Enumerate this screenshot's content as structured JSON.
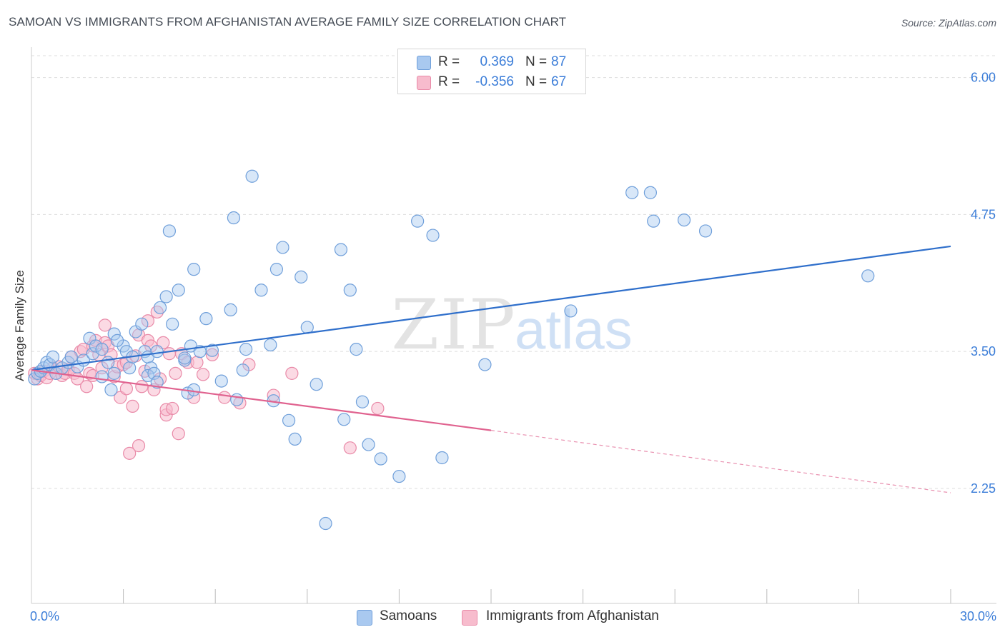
{
  "title": "SAMOAN VS IMMIGRANTS FROM AFGHANISTAN AVERAGE FAMILY SIZE CORRELATION CHART",
  "source": "Source: ZipAtlas.com",
  "watermark": {
    "zip": "ZIP",
    "atlas": "atlas"
  },
  "colors": {
    "blue_fill": "#a9c9f0",
    "blue_stroke": "#6f9fda",
    "blue_line": "#2f6fcb",
    "pink_fill": "#f7bccd",
    "pink_stroke": "#e98aa8",
    "pink_line": "#e0628f",
    "tick_label": "#3b7dd8",
    "grid": "#dddddd"
  },
  "stats_box": {
    "rows": [
      {
        "series": "samoans",
        "r_label": "R =",
        "r_value": "0.369",
        "n_label": "N =",
        "n_value": "87"
      },
      {
        "series": "afghanistan",
        "r_label": "R =",
        "r_value": "-0.356",
        "n_label": "N =",
        "n_value": "67"
      }
    ]
  },
  "chart_data": {
    "type": "scatter",
    "title": "SAMOAN VS IMMIGRANTS FROM AFGHANISTAN AVERAGE FAMILY SIZE CORRELATION CHART",
    "xlabel": "",
    "ylabel": "Average Family Size",
    "xlim": [
      0,
      30
    ],
    "ylim": [
      1.2,
      6.2
    ],
    "x_tick_labels": [
      "0.0%",
      "30.0%"
    ],
    "y_ticks": [
      2.25,
      3.5,
      4.75,
      6.0
    ],
    "y_tick_labels": [
      "2.25",
      "3.50",
      "4.75",
      "6.00"
    ],
    "legend_position": "bottom",
    "series": [
      {
        "name": "Samoans",
        "color": "#6f9fda",
        "trend": {
          "x": [
            0,
            30
          ],
          "y": [
            3.33,
            4.46
          ]
        },
        "points": [
          [
            0.1,
            3.25
          ],
          [
            0.2,
            3.3
          ],
          [
            0.3,
            3.32
          ],
          [
            0.4,
            3.35
          ],
          [
            0.5,
            3.4
          ],
          [
            0.6,
            3.38
          ],
          [
            0.8,
            3.3
          ],
          [
            1.0,
            3.35
          ],
          [
            0.7,
            3.45
          ],
          [
            1.2,
            3.4
          ],
          [
            1.3,
            3.45
          ],
          [
            1.5,
            3.36
          ],
          [
            1.7,
            3.42
          ],
          [
            1.9,
            3.62
          ],
          [
            2.0,
            3.48
          ],
          [
            2.1,
            3.55
          ],
          [
            2.3,
            3.52
          ],
          [
            2.3,
            3.27
          ],
          [
            2.5,
            3.4
          ],
          [
            2.6,
            3.15
          ],
          [
            2.7,
            3.3
          ],
          [
            2.7,
            3.66
          ],
          [
            3.0,
            3.55
          ],
          [
            3.1,
            3.5
          ],
          [
            3.2,
            3.35
          ],
          [
            3.3,
            3.45
          ],
          [
            3.4,
            3.68
          ],
          [
            3.6,
            3.75
          ],
          [
            3.7,
            3.5
          ],
          [
            3.8,
            3.45
          ],
          [
            3.9,
            3.35
          ],
          [
            3.8,
            3.28
          ],
          [
            4.0,
            3.3
          ],
          [
            4.2,
            3.9
          ],
          [
            4.1,
            3.22
          ],
          [
            4.4,
            4.0
          ],
          [
            4.5,
            4.6
          ],
          [
            4.6,
            3.75
          ],
          [
            4.8,
            4.06
          ],
          [
            5.0,
            3.42
          ],
          [
            5.1,
            3.12
          ],
          [
            5.3,
            3.15
          ],
          [
            5.0,
            3.44
          ],
          [
            5.2,
            3.55
          ],
          [
            5.3,
            4.25
          ],
          [
            5.5,
            3.5
          ],
          [
            5.7,
            3.8
          ],
          [
            5.9,
            3.51
          ],
          [
            6.2,
            3.23
          ],
          [
            6.6,
            4.72
          ],
          [
            6.5,
            3.88
          ],
          [
            6.7,
            3.06
          ],
          [
            6.9,
            3.33
          ],
          [
            7.0,
            3.52
          ],
          [
            7.2,
            5.1
          ],
          [
            7.5,
            4.06
          ],
          [
            7.8,
            3.56
          ],
          [
            7.9,
            3.05
          ],
          [
            8.0,
            4.25
          ],
          [
            8.2,
            4.45
          ],
          [
            8.4,
            2.87
          ],
          [
            8.6,
            2.7
          ],
          [
            8.8,
            4.18
          ],
          [
            9.0,
            3.72
          ],
          [
            9.3,
            3.2
          ],
          [
            10.1,
            4.43
          ],
          [
            10.2,
            2.88
          ],
          [
            10.4,
            4.06
          ],
          [
            10.6,
            3.52
          ],
          [
            10.8,
            3.04
          ],
          [
            11.0,
            2.65
          ],
          [
            11.4,
            2.52
          ],
          [
            12.0,
            2.36
          ],
          [
            12.6,
            4.69
          ],
          [
            13.1,
            4.56
          ],
          [
            13.4,
            2.53
          ],
          [
            14.8,
            3.38
          ],
          [
            17.6,
            3.87
          ],
          [
            19.6,
            4.95
          ],
          [
            20.2,
            4.95
          ],
          [
            20.3,
            4.69
          ],
          [
            21.3,
            4.7
          ],
          [
            22.0,
            4.6
          ],
          [
            27.3,
            4.19
          ],
          [
            9.6,
            1.93
          ],
          [
            4.1,
            3.5
          ],
          [
            2.8,
            3.6
          ]
        ]
      },
      {
        "name": "Immigrants from Afghanistan",
        "color": "#e98aa8",
        "trend": {
          "x": [
            0,
            15
          ],
          "y": [
            3.33,
            2.78
          ]
        },
        "trend_dashed": {
          "x": [
            15,
            30
          ],
          "y": [
            2.78,
            2.21
          ]
        },
        "points": [
          [
            0.1,
            3.3
          ],
          [
            0.2,
            3.25
          ],
          [
            0.3,
            3.28
          ],
          [
            0.4,
            3.32
          ],
          [
            0.5,
            3.26
          ],
          [
            0.6,
            3.3
          ],
          [
            0.7,
            3.35
          ],
          [
            0.8,
            3.3
          ],
          [
            0.9,
            3.36
          ],
          [
            1.0,
            3.28
          ],
          [
            1.1,
            3.3
          ],
          [
            1.2,
            3.34
          ],
          [
            1.3,
            3.45
          ],
          [
            1.4,
            3.3
          ],
          [
            1.5,
            3.25
          ],
          [
            1.6,
            3.5
          ],
          [
            1.7,
            3.52
          ],
          [
            1.8,
            3.18
          ],
          [
            1.9,
            3.3
          ],
          [
            2.0,
            3.28
          ],
          [
            2.0,
            3.55
          ],
          [
            2.1,
            3.6
          ],
          [
            2.2,
            3.47
          ],
          [
            2.3,
            3.35
          ],
          [
            2.4,
            3.58
          ],
          [
            2.4,
            3.74
          ],
          [
            2.5,
            3.55
          ],
          [
            2.6,
            3.47
          ],
          [
            2.7,
            3.27
          ],
          [
            2.8,
            3.36
          ],
          [
            2.9,
            3.08
          ],
          [
            3.0,
            3.38
          ],
          [
            3.1,
            3.4
          ],
          [
            3.1,
            3.16
          ],
          [
            3.2,
            2.57
          ],
          [
            3.3,
            3.0
          ],
          [
            3.4,
            3.46
          ],
          [
            3.5,
            3.65
          ],
          [
            3.5,
            2.64
          ],
          [
            3.6,
            3.18
          ],
          [
            3.7,
            3.32
          ],
          [
            3.8,
            3.78
          ],
          [
            3.8,
            3.6
          ],
          [
            3.9,
            3.55
          ],
          [
            4.0,
            3.15
          ],
          [
            4.1,
            3.86
          ],
          [
            4.2,
            3.25
          ],
          [
            4.3,
            3.58
          ],
          [
            4.4,
            2.92
          ],
          [
            4.4,
            2.97
          ],
          [
            4.5,
            3.48
          ],
          [
            4.6,
            2.98
          ],
          [
            4.7,
            3.3
          ],
          [
            4.8,
            2.75
          ],
          [
            4.9,
            3.48
          ],
          [
            5.1,
            3.4
          ],
          [
            5.3,
            3.08
          ],
          [
            5.4,
            3.4
          ],
          [
            5.6,
            3.29
          ],
          [
            5.9,
            3.47
          ],
          [
            6.3,
            3.08
          ],
          [
            6.8,
            3.03
          ],
          [
            7.1,
            3.38
          ],
          [
            7.9,
            3.1
          ],
          [
            8.5,
            3.3
          ],
          [
            10.4,
            2.62
          ],
          [
            11.3,
            2.98
          ]
        ]
      }
    ]
  },
  "legend": {
    "items": [
      "Samoans",
      "Immigrants from Afghanistan"
    ]
  }
}
